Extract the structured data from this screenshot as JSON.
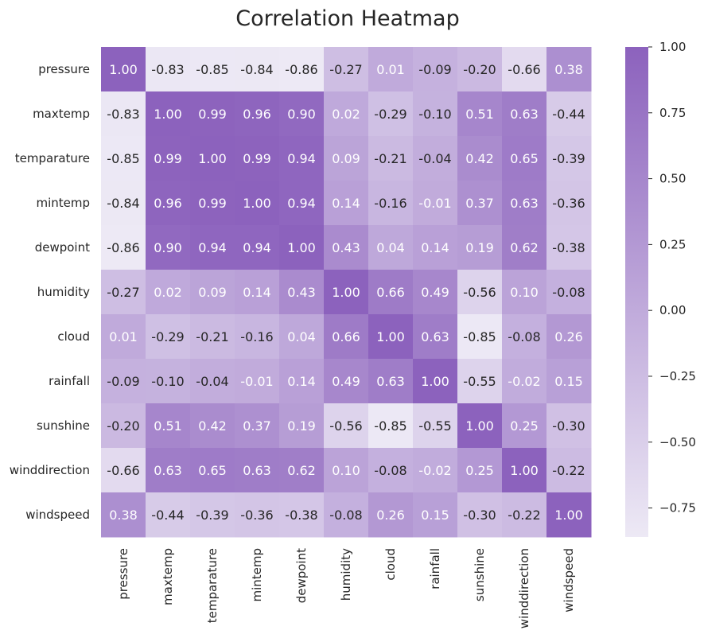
{
  "chart_data": {
    "type": "heatmap",
    "title": "Correlation Heatmap",
    "labels": [
      "pressure",
      "maxtemp",
      "temparature",
      "mintemp",
      "dewpoint",
      "humidity",
      "cloud",
      "rainfall",
      "sunshine",
      "winddirection",
      "windspeed"
    ],
    "matrix": [
      [
        1.0,
        -0.83,
        -0.85,
        -0.84,
        -0.86,
        -0.27,
        0.01,
        -0.09,
        -0.2,
        -0.66,
        0.38
      ],
      [
        -0.83,
        1.0,
        0.99,
        0.96,
        0.9,
        0.02,
        -0.29,
        -0.1,
        0.51,
        0.63,
        -0.44
      ],
      [
        -0.85,
        0.99,
        1.0,
        0.99,
        0.94,
        0.09,
        -0.21,
        -0.04,
        0.42,
        0.65,
        -0.39
      ],
      [
        -0.84,
        0.96,
        0.99,
        1.0,
        0.94,
        0.14,
        -0.16,
        -0.01,
        0.37,
        0.63,
        -0.36
      ],
      [
        -0.86,
        0.9,
        0.94,
        0.94,
        1.0,
        0.43,
        0.04,
        0.14,
        0.19,
        0.62,
        -0.38
      ],
      [
        -0.27,
        0.02,
        0.09,
        0.14,
        0.43,
        1.0,
        0.66,
        0.49,
        -0.56,
        0.1,
        -0.08
      ],
      [
        0.01,
        -0.29,
        -0.21,
        -0.16,
        0.04,
        0.66,
        1.0,
        0.63,
        -0.85,
        -0.08,
        0.26
      ],
      [
        -0.09,
        -0.1,
        -0.04,
        -0.01,
        0.14,
        0.49,
        0.63,
        1.0,
        -0.55,
        -0.02,
        0.15
      ],
      [
        -0.2,
        0.51,
        0.42,
        0.37,
        0.19,
        -0.56,
        -0.85,
        -0.55,
        1.0,
        0.25,
        -0.3
      ],
      [
        -0.66,
        0.63,
        0.65,
        0.63,
        0.62,
        0.1,
        -0.08,
        -0.02,
        0.25,
        1.0,
        -0.22
      ],
      [
        0.38,
        -0.44,
        -0.39,
        -0.36,
        -0.38,
        -0.08,
        0.26,
        0.15,
        -0.3,
        -0.22,
        1.0
      ]
    ],
    "value_format": "0.00",
    "color_range": [
      -0.86,
      1.0
    ],
    "colors": {
      "low": "#ede9f5",
      "high": "#8c62bd",
      "text_dark": "#262626",
      "text_light": "#ffffff"
    },
    "colorbar": {
      "ticks": [
        1.0,
        0.75,
        0.5,
        0.25,
        0.0,
        -0.25,
        -0.5,
        -0.75
      ],
      "tick_labels": [
        "1.00",
        "0.75",
        "0.50",
        "0.25",
        "0.00",
        "−0.25",
        "−0.50",
        "−0.75"
      ]
    }
  }
}
